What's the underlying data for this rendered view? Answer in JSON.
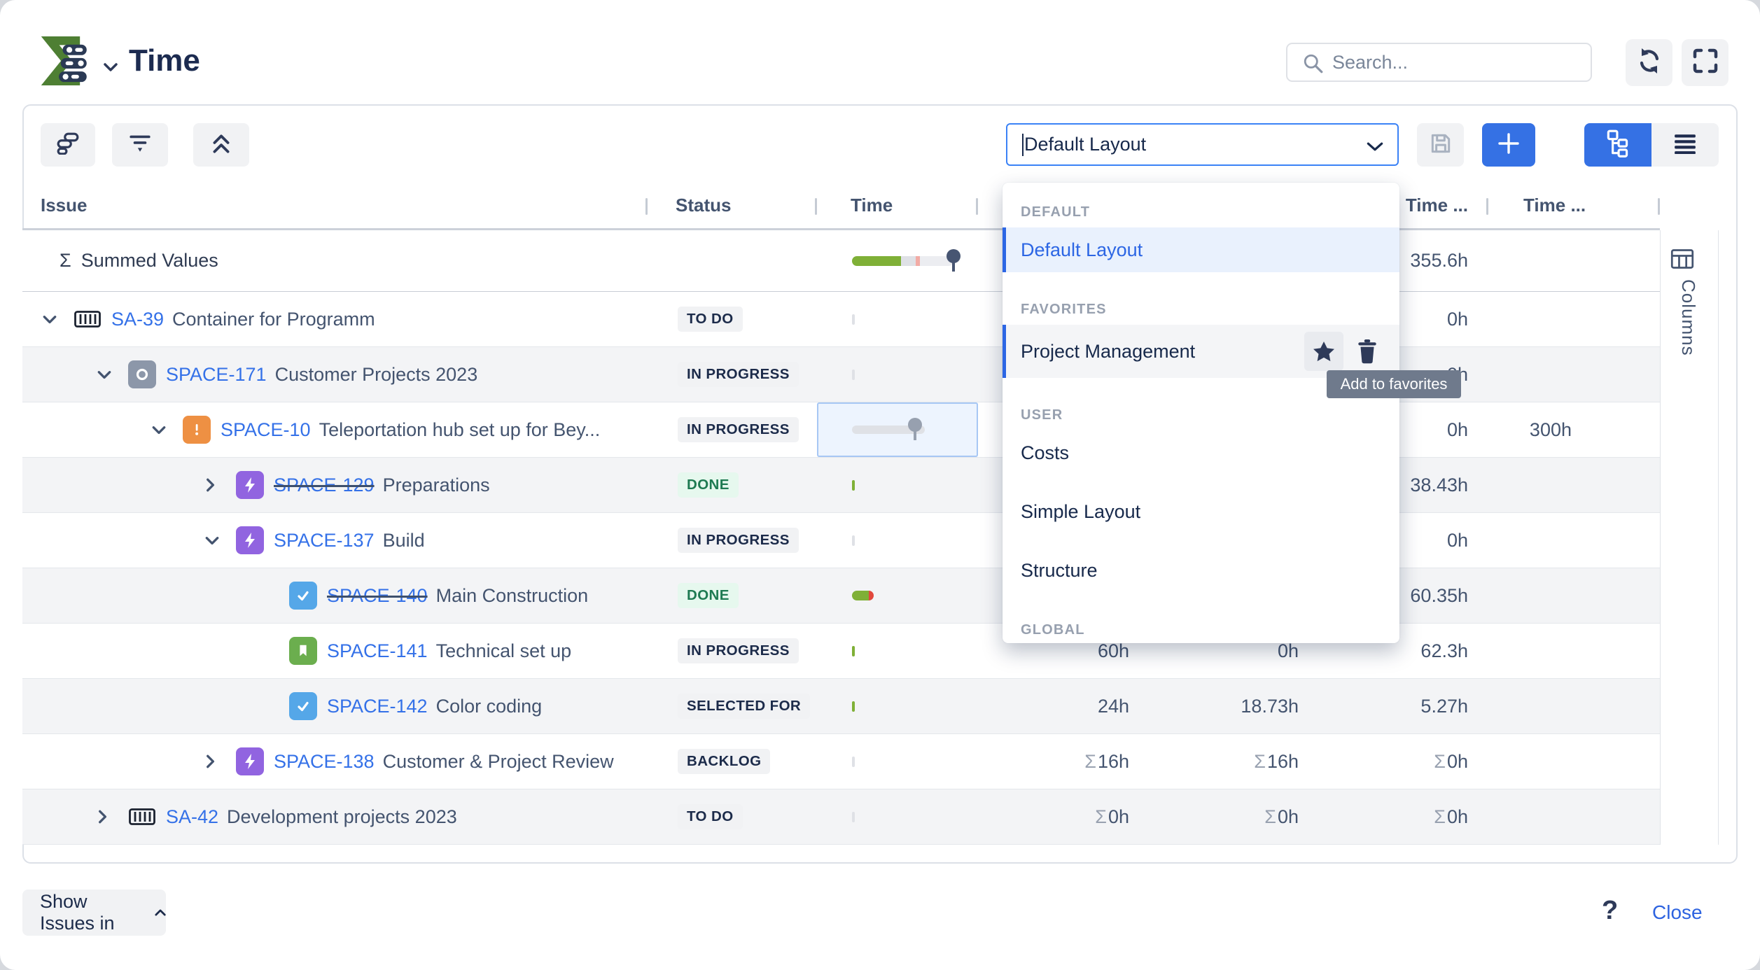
{
  "header": {
    "title": "Time",
    "search": {
      "placeholder": "Search..."
    }
  },
  "toolbar": {
    "layout_select": {
      "value": "Default Layout"
    }
  },
  "layout_dropdown": {
    "tooltip": "Add to favorites",
    "sections": [
      {
        "label": "DEFAULT",
        "items": [
          {
            "label": "Default Layout",
            "state": "selected"
          }
        ]
      },
      {
        "label": "FAVORITES",
        "items": [
          {
            "label": "Project Management",
            "state": "hover",
            "actions": [
              "star",
              "trash"
            ]
          }
        ]
      },
      {
        "label": "USER",
        "items": [
          {
            "label": "Costs"
          },
          {
            "label": "Simple Layout"
          },
          {
            "label": "Structure"
          }
        ]
      },
      {
        "label": "GLOBAL",
        "items": []
      }
    ]
  },
  "table": {
    "headers": {
      "issue": "Issue",
      "status": "Status",
      "time": "Time",
      "time_c": "Time ...",
      "time_d": "Time ..."
    },
    "rows": [
      {
        "type": "summed",
        "sigma": "Σ",
        "label": "Summed Values",
        "time_bar": "summed",
        "values": {
          "c": "355.6h"
        }
      },
      {
        "key": "SA-39",
        "summary": "Container for Programm",
        "level": 0,
        "chevron": "down",
        "icon": "container",
        "status": {
          "label": "TO DO",
          "kind": "gray"
        },
        "time_bar": "sliver-gray",
        "values": {
          "c": "0h"
        }
      },
      {
        "key": "SPACE-171",
        "summary": "Customer Projects 2023",
        "level": 1,
        "chevron": "down",
        "icon": "ring",
        "status": {
          "label": "IN PROGRESS",
          "kind": "gray"
        },
        "time_bar": "sliver-gray",
        "values": {
          "c": "0h"
        },
        "stripe": true
      },
      {
        "key": "SPACE-10",
        "summary": "Teleportation hub set up for Bey...",
        "level": 2,
        "chevron": "down",
        "icon": "alert",
        "status": {
          "label": "IN PROGRESS",
          "kind": "gray"
        },
        "time_bar": "slider",
        "selected_cell": true,
        "values": {
          "c": "0h",
          "d": "300h"
        }
      },
      {
        "key": "SPACE-129",
        "summary": "Preparations",
        "level": 3,
        "chevron": "right",
        "icon": "epic",
        "struck": true,
        "status": {
          "label": "DONE",
          "kind": "green"
        },
        "time_bar": "sliver-green",
        "values": {
          "c": "38.43h"
        },
        "stripe": true
      },
      {
        "key": "SPACE-137",
        "summary": "Build",
        "level": 3,
        "chevron": "down",
        "icon": "epic",
        "status": {
          "label": "IN PROGRESS",
          "kind": "gray"
        },
        "time_bar": "sliver-gray",
        "values": {
          "c": "0h"
        }
      },
      {
        "key": "SPACE-140",
        "summary": "Main Construction",
        "level": 4,
        "icon": "task",
        "struck": true,
        "status": {
          "label": "DONE",
          "kind": "green"
        },
        "time_bar": "pill-done",
        "values": {
          "c": "60.35h"
        },
        "stripe": true
      },
      {
        "key": "SPACE-141",
        "summary": "Technical set up",
        "level": 4,
        "icon": "story",
        "status": {
          "label": "IN PROGRESS",
          "kind": "gray"
        },
        "time_bar": "sliver-green",
        "values": {
          "a": "60h",
          "b": "0h",
          "c": "62.3h"
        }
      },
      {
        "key": "SPACE-142",
        "summary": "Color coding",
        "level": 4,
        "icon": "task",
        "status": {
          "label": "SELECTED FOR",
          "kind": "gray"
        },
        "time_bar": "sliver-green",
        "values": {
          "a": "24h",
          "b": "18.73h",
          "c": "5.27h"
        },
        "stripe": true
      },
      {
        "key": "SPACE-138",
        "summary": "Customer & Project Review",
        "level": 3,
        "chevron": "right",
        "icon": "epic",
        "status": {
          "label": "BACKLOG",
          "kind": "gray"
        },
        "time_bar": "sliver-gray",
        "values": {
          "a": "Σ16h",
          "b": "Σ16h",
          "c": "Σ0h"
        }
      },
      {
        "key": "SA-42",
        "summary": "Development projects 2023",
        "level": 1,
        "chevron": "right",
        "icon": "container",
        "status": {
          "label": "TO DO",
          "kind": "gray"
        },
        "time_bar": "sliver-gray",
        "values": {
          "a": "Σ0h",
          "b": "Σ0h",
          "c": "Σ0h"
        },
        "stripe": true
      }
    ]
  },
  "columns_panel": {
    "label": "Columns"
  },
  "footer": {
    "show_issues": "Show Issues in",
    "help": "?",
    "close": "Close"
  },
  "colors": {
    "accent_blue": "#3571e4",
    "link_blue": "#3471e8",
    "progress_green": "#7fb037",
    "progress_red": "#e2483d",
    "done_badge_bg": "#e6f8ee",
    "done_badge_text": "#1e7a52",
    "badge_bg": "#f1f2f4",
    "text_navy": "#17294b",
    "logo_green": "#4e7f33"
  }
}
